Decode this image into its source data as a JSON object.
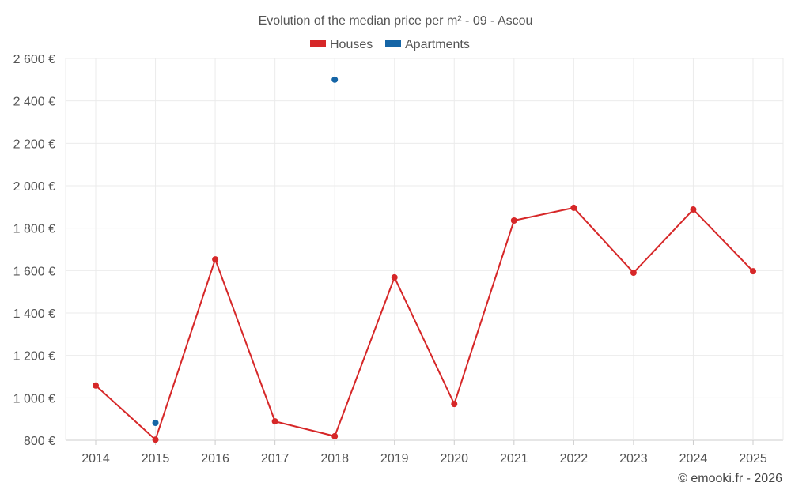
{
  "chart_data": {
    "type": "line",
    "title": "Evolution of the median price per m² - 09 - Ascou",
    "xlabel": "",
    "ylabel": "",
    "categories": [
      "2014",
      "2015",
      "2016",
      "2017",
      "2018",
      "2019",
      "2020",
      "2021",
      "2022",
      "2023",
      "2024",
      "2025"
    ],
    "series": [
      {
        "name": "Houses",
        "color": "#d62728",
        "values": [
          1058,
          803,
          1653,
          889,
          819,
          1568,
          971,
          1836,
          1896,
          1590,
          1888,
          1597
        ]
      },
      {
        "name": "Apartments",
        "color": "#1565a6",
        "values": [
          null,
          882,
          null,
          null,
          2500,
          null,
          null,
          null,
          null,
          null,
          null,
          null
        ]
      }
    ],
    "ylim": [
      800,
      2600
    ],
    "yticks": [
      "800 €",
      "1 000 €",
      "1 200 €",
      "1 400 €",
      "1 600 €",
      "1 800 €",
      "2 000 €",
      "2 200 €",
      "2 400 €",
      "2 600 €"
    ],
    "grid": true,
    "legend_position": "top-center",
    "credit": "© emooki.fr - 2026"
  }
}
